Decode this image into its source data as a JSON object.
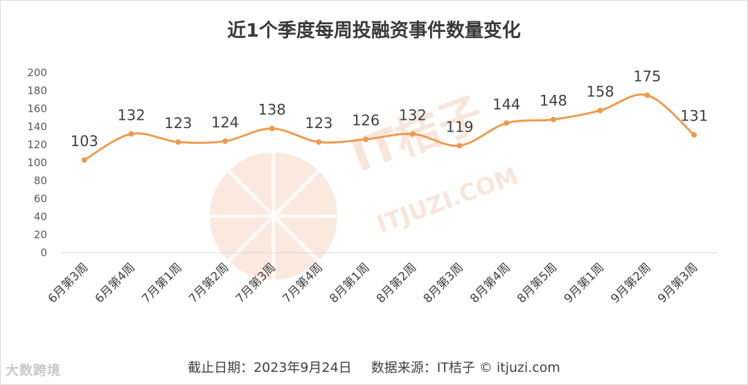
{
  "chart_data": {
    "type": "line",
    "title": "近1个季度每周投融资事件数量变化",
    "categories": [
      "6月第3周",
      "6月第4周",
      "7月第1周",
      "7月第2周",
      "7月第3周",
      "7月第4周",
      "8月第1周",
      "8月第2周",
      "8月第3周",
      "8月第4周",
      "8月第5周",
      "9月第1周",
      "9月第2周",
      "9月第3周"
    ],
    "series": [
      {
        "values": [
          103,
          132,
          123,
          124,
          138,
          123,
          126,
          132,
          119,
          144,
          148,
          158,
          175,
          131
        ]
      }
    ],
    "ylim": [
      0,
      200
    ],
    "yticks": [
      0,
      20,
      40,
      60,
      80,
      100,
      120,
      140,
      160,
      180,
      200
    ],
    "grid": false,
    "line_color": "#EE9A4D",
    "smooth": true
  },
  "footer": {
    "date_text": "截止日期：2023年9月24日",
    "source_text": "数据来源：IT桔子 © itjuzi.com"
  },
  "watermark": {
    "brand_text": "IT桔子",
    "domain_text": "ITJUZI.COM"
  },
  "corner_brand": "大数跨境",
  "colors": {
    "line": "#EE9A4D",
    "watermark": "#F6D7C4"
  }
}
